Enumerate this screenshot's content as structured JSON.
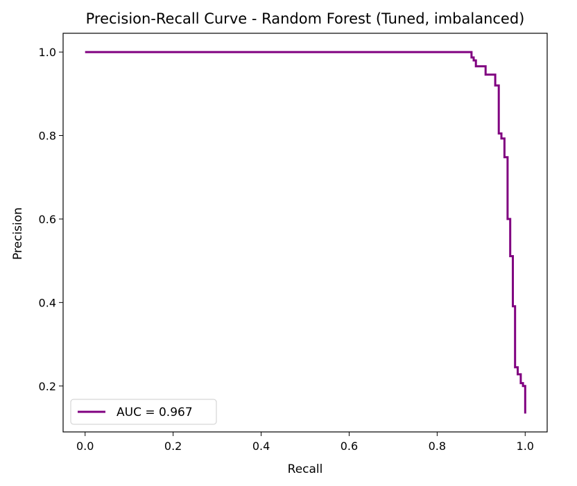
{
  "chart_data": {
    "type": "line",
    "title": "Precision-Recall Curve - Random Forest (Tuned, imbalanced)",
    "xlabel": "Recall",
    "ylabel": "Precision",
    "xlim": [
      -0.05,
      1.05
    ],
    "ylim": [
      0.09,
      1.045
    ],
    "xticks": [
      0.0,
      0.2,
      0.4,
      0.6,
      0.8,
      1.0
    ],
    "yticks": [
      0.2,
      0.4,
      0.6,
      0.8,
      1.0
    ],
    "xtick_labels": [
      "0.0",
      "0.2",
      "0.4",
      "0.6",
      "0.8",
      "1.0"
    ],
    "ytick_labels": [
      "0.2",
      "0.4",
      "0.6",
      "0.8",
      "1.0"
    ],
    "grid": false,
    "legend_position": "lower-left",
    "series": [
      {
        "name": "AUC = 0.967",
        "color": "#800080",
        "step": "post",
        "x": [
          0.0,
          0.878,
          0.883,
          0.888,
          0.893,
          0.91,
          0.932,
          0.94,
          0.946,
          0.953,
          0.96,
          0.966,
          0.972,
          0.977,
          0.983,
          0.99,
          0.995,
          1.0
        ],
        "y": [
          1.0,
          0.987,
          0.98,
          0.966,
          0.966,
          0.946,
          0.92,
          0.805,
          0.793,
          0.748,
          0.6,
          0.511,
          0.391,
          0.245,
          0.228,
          0.207,
          0.2,
          0.134
        ]
      }
    ]
  }
}
